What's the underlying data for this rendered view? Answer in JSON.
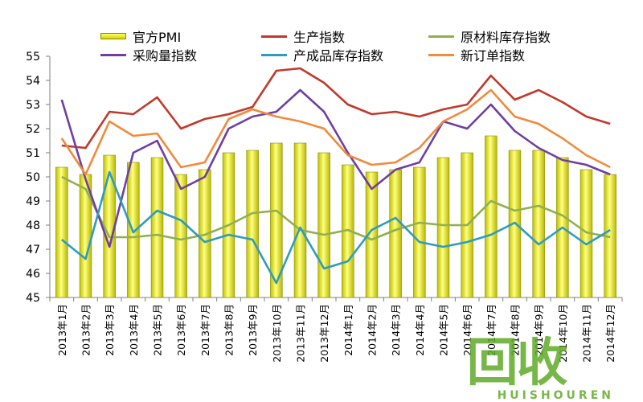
{
  "colors": {
    "pmi_bar": "#e6e600",
    "production": "#c0392b",
    "raw_material_inventory": "#8fb050",
    "purchase": "#6e3fa0",
    "finished_goods_inventory": "#2f9bbf",
    "new_orders": "#f08a3c",
    "watermark": "#5faa28"
  },
  "watermark": {
    "text": "回收",
    "subtext": "HUISHOUREN"
  },
  "chart_data": {
    "type": "bar",
    "categories": [
      "2013年1月",
      "2013年2月",
      "2013年3月",
      "2013年4月",
      "2013年5月",
      "2013年6月",
      "2013年7月",
      "2013年8月",
      "2013年9月",
      "2013年10月",
      "2013年11月",
      "2013年12月",
      "2014年1月",
      "2014年2月",
      "2014年3月",
      "2014年4月",
      "2014年5月",
      "2014年6月",
      "2014年7月",
      "2014年8月",
      "2014年9月",
      "2014年10月",
      "2014年11月",
      "2014年12月"
    ],
    "ylim": [
      45,
      55
    ],
    "yticks": [
      45,
      46,
      47,
      48,
      49,
      50,
      51,
      52,
      53,
      54,
      55
    ],
    "grid": false,
    "legend_position": "top",
    "series": [
      {
        "name": "官方PMI",
        "kind": "bar",
        "values": [
          50.4,
          50.1,
          50.9,
          50.6,
          50.8,
          50.1,
          50.3,
          51.0,
          51.1,
          51.4,
          51.4,
          51.0,
          50.5,
          50.2,
          50.3,
          50.4,
          50.8,
          51.0,
          51.7,
          51.1,
          51.1,
          50.8,
          50.3,
          50.1
        ]
      },
      {
        "name": "生产指数",
        "kind": "line",
        "values": [
          51.3,
          51.2,
          52.7,
          52.6,
          53.3,
          52.0,
          52.4,
          52.6,
          52.9,
          54.4,
          54.5,
          53.9,
          53.0,
          52.6,
          52.7,
          52.5,
          52.8,
          53.0,
          54.2,
          53.2,
          53.6,
          53.1,
          52.5,
          52.2
        ]
      },
      {
        "name": "原材料库存指数",
        "kind": "line",
        "values": [
          50.0,
          49.5,
          47.5,
          47.5,
          47.6,
          47.4,
          47.6,
          48.0,
          48.5,
          48.6,
          47.8,
          47.6,
          47.8,
          47.4,
          47.8,
          48.1,
          48.0,
          48.0,
          49.0,
          48.6,
          48.8,
          48.4,
          47.7,
          47.5
        ]
      },
      {
        "name": "采购量指数",
        "kind": "line",
        "values": [
          53.2,
          49.9,
          47.1,
          51.0,
          51.5,
          49.5,
          50.0,
          52.0,
          52.5,
          52.7,
          53.6,
          52.7,
          51.0,
          49.5,
          50.3,
          50.6,
          52.3,
          52.0,
          53.0,
          51.9,
          51.2,
          50.7,
          50.5,
          50.1
        ]
      },
      {
        "name": "产成品库存指数",
        "kind": "line",
        "values": [
          47.4,
          46.6,
          50.2,
          47.7,
          48.6,
          48.2,
          47.3,
          47.6,
          47.4,
          45.6,
          47.9,
          46.2,
          46.5,
          47.8,
          48.3,
          47.3,
          47.1,
          47.3,
          47.6,
          48.1,
          47.2,
          47.9,
          47.2,
          47.8
        ]
      },
      {
        "name": "新订单指数",
        "kind": "line",
        "values": [
          51.6,
          50.1,
          52.3,
          51.7,
          51.8,
          50.4,
          50.6,
          52.4,
          52.8,
          52.5,
          52.3,
          52.0,
          50.9,
          50.5,
          50.6,
          51.2,
          52.3,
          52.8,
          53.6,
          52.5,
          52.2,
          51.6,
          50.9,
          50.4
        ]
      }
    ]
  }
}
